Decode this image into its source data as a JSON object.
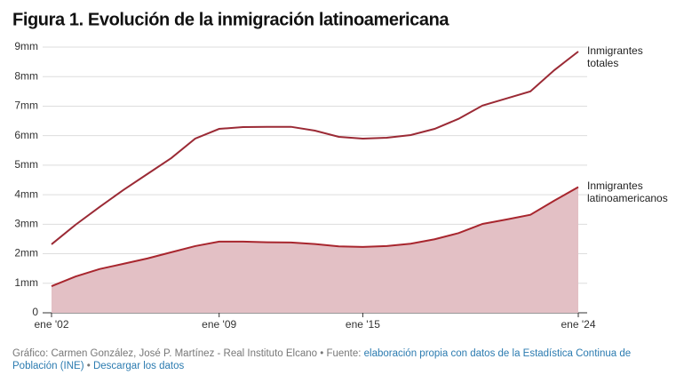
{
  "chart_data": {
    "type": "line",
    "title": "Figura 1. Evolución de la inmigración latinoamericana",
    "x": [
      2002,
      2003,
      2004,
      2005,
      2006,
      2007,
      2008,
      2009,
      2010,
      2011,
      2012,
      2013,
      2014,
      2015,
      2016,
      2017,
      2018,
      2019,
      2020,
      2021,
      2022,
      2023,
      2024
    ],
    "xlim": [
      2002,
      2024
    ],
    "xticks": [
      {
        "value": 2002,
        "label": "ene '02"
      },
      {
        "value": 2009,
        "label": "ene '09"
      },
      {
        "value": 2015,
        "label": "ene '15"
      },
      {
        "value": 2024,
        "label": "ene '24"
      }
    ],
    "ylim": [
      0,
      9
    ],
    "yticks": [
      0,
      {
        "value": 1,
        "label": "1mm"
      },
      {
        "value": 2,
        "label": "2mm"
      },
      {
        "value": 3,
        "label": "3mm"
      },
      {
        "value": 4,
        "label": "4mm"
      },
      {
        "value": 5,
        "label": "5mm"
      },
      {
        "value": 6,
        "label": "6mm"
      },
      {
        "value": 7,
        "label": "7mm"
      },
      {
        "value": 8,
        "label": "8mm"
      },
      {
        "value": 9,
        "label": "9mm"
      }
    ],
    "grid": true,
    "series": [
      {
        "name": "Inmigrantes totales",
        "color": "#9b2a35",
        "values": [
          2.32,
          2.98,
          3.58,
          4.16,
          4.7,
          5.24,
          5.9,
          6.23,
          6.29,
          6.3,
          6.3,
          6.17,
          5.96,
          5.9,
          5.93,
          6.02,
          6.23,
          6.57,
          7.02,
          7.26,
          7.5,
          8.22,
          8.85
        ]
      },
      {
        "name": "Inmigrantes latinoamericanos",
        "color": "#a8262e",
        "fill": "#e3c0c5",
        "values": [
          0.9,
          1.23,
          1.48,
          1.66,
          1.84,
          2.05,
          2.26,
          2.41,
          2.41,
          2.39,
          2.38,
          2.33,
          2.25,
          2.23,
          2.26,
          2.34,
          2.49,
          2.7,
          3.01,
          3.16,
          3.32,
          3.8,
          4.26
        ]
      }
    ]
  },
  "footer": {
    "credit": "Gráfico: Carmen González, José P. Martínez - Real Instituto Elcano • Fuente:",
    "source": "elaboración propia con datos de la Estadística Continua de Población (INE)",
    "separator": "•",
    "download": "Descargar los datos"
  }
}
